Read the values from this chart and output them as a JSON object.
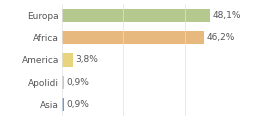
{
  "categories": [
    "Europa",
    "Africa",
    "America",
    "Apolidi",
    "Asia"
  ],
  "values": [
    48.1,
    46.2,
    3.8,
    0.9,
    0.9
  ],
  "labels": [
    "48,1%",
    "46,2%",
    "3,8%",
    "0,9%",
    "0,9%"
  ],
  "bar_colors": [
    "#b5c98e",
    "#e8b97e",
    "#e8d47e",
    "#c8c8c8",
    "#6b9fd4"
  ],
  "background_color": "#ffffff",
  "xlim": [
    0,
    60
  ],
  "bar_height": 0.6,
  "label_fontsize": 6.5,
  "tick_fontsize": 6.5
}
